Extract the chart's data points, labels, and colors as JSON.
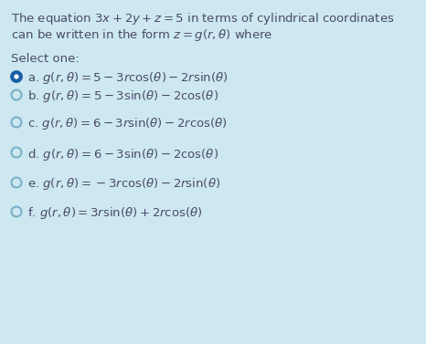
{
  "background_color": "#cde8f0",
  "text_color": "#4a4a6a",
  "title_line1": "The equation $3x + 2y + z = 5$ in terms of cylindrical coordinates",
  "title_line2": "can be written in the form $z = g(r, \\theta)$ where",
  "select_one": "Select one:",
  "options": [
    {
      "label": "a.",
      "formula": "$g(r, \\theta) = 5 - 3r\\cos(\\theta) - 2r\\sin(\\theta)$",
      "selected": true
    },
    {
      "label": "b.",
      "formula": "$g(r, \\theta) = 5 - 3\\sin(\\theta) - 2\\cos(\\theta)$",
      "selected": false
    },
    {
      "label": "c.",
      "formula": "$g(r, \\theta) = 6 - 3r\\sin(\\theta) - 2r\\cos(\\theta)$",
      "selected": false
    },
    {
      "label": "d.",
      "formula": "$g(r, \\theta) = 6 - 3\\sin(\\theta) - 2\\cos(\\theta)$",
      "selected": false
    },
    {
      "label": "e.",
      "formula": "$g(r, \\theta) = -3r\\cos(\\theta) - 2r\\sin(\\theta)$",
      "selected": false
    },
    {
      "label": "f.",
      "formula": "$g(r, \\theta) = 3r\\sin(\\theta) + 2r\\cos(\\theta)$",
      "selected": false
    }
  ],
  "radio_fill_selected": "#1a5fa8",
  "radio_border_selected": "#1a5fa8",
  "radio_fill_unselected": "#cde8f0",
  "radio_border_unselected": "#7ab0c8",
  "font_size": 9.5,
  "radio_size": 5.5
}
